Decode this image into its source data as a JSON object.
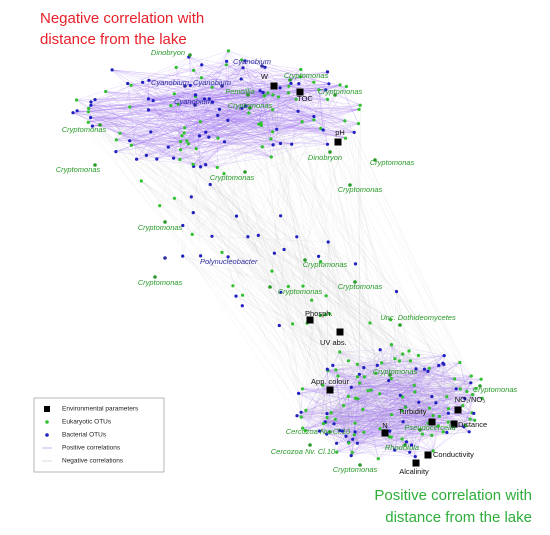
{
  "annotations": {
    "top": [
      "Negative correlation with",
      "distance from the lake"
    ],
    "bottom": [
      "Positive correlation with",
      "distance from the lake"
    ],
    "top_color": "#e8202a",
    "bottom_color": "#2fae3a"
  },
  "legend": [
    {
      "label": "Environmental parameters",
      "marker": "square",
      "color": "#000000"
    },
    {
      "label": "Eukaryotic OTUs",
      "marker": "dot",
      "color": "#2fc12f"
    },
    {
      "label": "Bacterial OTUs",
      "marker": "dot",
      "color": "#2020c0"
    },
    {
      "label": "Positive correlations",
      "marker": "line",
      "color": "#b9a4f0"
    },
    {
      "label": "Negative correlations",
      "marker": "line",
      "color": "#cfcfcf"
    }
  ],
  "nodes": [
    {
      "label": "Dinobryon",
      "marker": "dot",
      "color": "#2a9a2a"
    },
    {
      "label": "Cyanobium",
      "marker": "dot",
      "color": "#3030a0"
    },
    {
      "label": "Cryptomonas",
      "marker": "dot",
      "color": "#2a9a2a"
    },
    {
      "label": "W",
      "marker": "square",
      "color": "#000000"
    },
    {
      "label": "Cyanobium",
      "marker": "dot",
      "color": "#3030a0"
    },
    {
      "label": "Cyanobium",
      "marker": "dot",
      "color": "#3030a0"
    },
    {
      "label": "Penicillia",
      "marker": "dot",
      "color": "#2a9a2a"
    },
    {
      "label": "Cryptomonas",
      "marker": "dot",
      "color": "#2a9a2a"
    },
    {
      "label": "TOC",
      "marker": "square",
      "color": "#000000"
    },
    {
      "label": "Cyanobium",
      "marker": "dot",
      "color": "#3030a0"
    },
    {
      "label": "Cryptomonas",
      "marker": "dot",
      "color": "#2a9a2a"
    },
    {
      "label": "pH",
      "marker": "square",
      "color": "#000000"
    },
    {
      "label": "Cryptomonas",
      "marker": "dot",
      "color": "#2a9a2a"
    },
    {
      "label": "Dinobryon",
      "marker": "dot",
      "color": "#2a9a2a"
    },
    {
      "label": "Cryptomonas",
      "marker": "dot",
      "color": "#2a9a2a"
    },
    {
      "label": "Cryptomonas",
      "marker": "dot",
      "color": "#2a9a2a"
    },
    {
      "label": "Cryptomonas",
      "marker": "dot",
      "color": "#2a9a2a"
    },
    {
      "label": "Cryptomonas",
      "marker": "dot",
      "color": "#2a9a2a"
    },
    {
      "label": "Cryptomonas",
      "marker": "dot",
      "color": "#2a9a2a"
    },
    {
      "label": "Polynucleobacter",
      "marker": "dot",
      "color": "#3030a0"
    },
    {
      "label": "Cryptomonas",
      "marker": "dot",
      "color": "#2a9a2a"
    },
    {
      "label": "Cryptomonas",
      "marker": "dot",
      "color": "#2a9a2a"
    },
    {
      "label": "Cryptomonas",
      "marker": "dot",
      "color": "#2a9a2a"
    },
    {
      "label": "Cryptomonas",
      "marker": "dot",
      "color": "#2a9a2a"
    },
    {
      "label": "Phosph.",
      "marker": "square",
      "color": "#000000"
    },
    {
      "label": "Unc. Dothideomycetes",
      "marker": "dot",
      "color": "#2a9a2a"
    },
    {
      "label": "UV abs.",
      "marker": "square",
      "color": "#000000"
    },
    {
      "label": "Cryptomonas",
      "marker": "dot",
      "color": "#2a9a2a"
    },
    {
      "label": "App. colour",
      "marker": "square",
      "color": "#000000"
    },
    {
      "label": "Cryptomonas",
      "marker": "dot",
      "color": "#2a9a2a"
    },
    {
      "label": "NO₂/NO₃",
      "marker": "square",
      "color": "#000000"
    },
    {
      "label": "Turbidity",
      "marker": "square",
      "color": "#000000"
    },
    {
      "label": "Distance",
      "marker": "square",
      "color": "#000000"
    },
    {
      "label": "Pseudocercella",
      "marker": "dot",
      "color": "#2a9a2a"
    },
    {
      "label": "N",
      "marker": "square",
      "color": "#000000"
    },
    {
      "label": "Cercozoa Nv. Cl.10",
      "marker": "dot",
      "color": "#2a9a2a"
    },
    {
      "label": "Rhodotula",
      "marker": "dot",
      "color": "#2a9a2a"
    },
    {
      "label": "Cercozoa Nv. Cl.10",
      "marker": "dot",
      "color": "#2a9a2a"
    },
    {
      "label": "Conductivity",
      "marker": "square",
      "color": "#000000"
    },
    {
      "label": "Cryptomonas",
      "marker": "dot",
      "color": "#2a9a2a"
    },
    {
      "label": "Alcalinity",
      "marker": "square",
      "color": "#000000"
    }
  ]
}
